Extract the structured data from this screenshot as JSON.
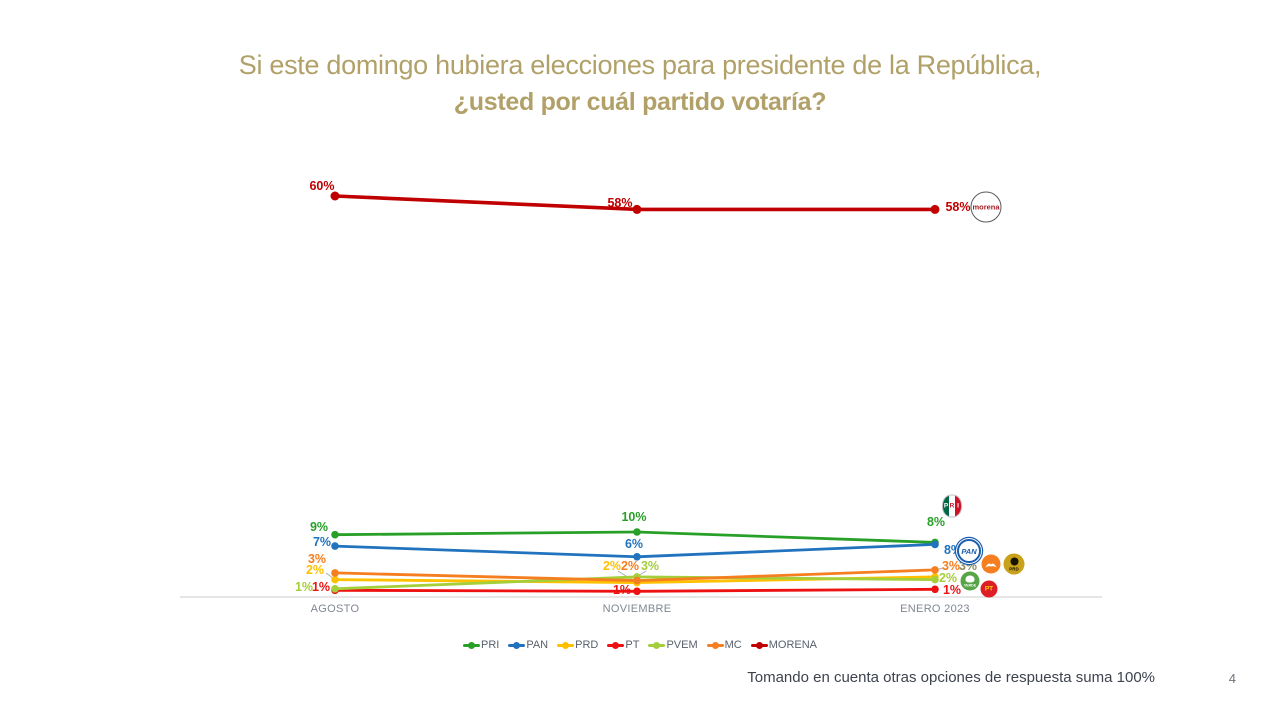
{
  "title": {
    "line1": "Si este domingo hubiera elecciones para presidente de la República,",
    "line2": "¿usted por cuál partido votaría?"
  },
  "footer": {
    "note": "Tomando en cuenta otras opciones de respuesta suma 100%",
    "page": "4"
  },
  "colors": {
    "title_gold": "#B1A169",
    "axis_label_gray": "#808792",
    "legend_text_gray": "#59606C",
    "axis_line_gray": "#D8D8D8"
  },
  "logos": {
    "pri_p": "P",
    "pri_r": "R",
    "pri_i": "I",
    "pan": "PAN",
    "prd": "PRD",
    "pvem": "VERDE",
    "pt": "PT",
    "morena": "morena"
  },
  "chart_data": {
    "type": "line",
    "title": "Si este domingo hubiera elecciones para presidente de la República, ¿usted por cuál partido votaría?",
    "categories": [
      "AGOSTO",
      "NOVIEMBRE",
      "ENERO 2023"
    ],
    "xlabel": "",
    "ylabel": "",
    "ylim": [
      0,
      65
    ],
    "grid": false,
    "legend_position": "bottom",
    "annotation": "Party logos shown next to the last data point of each series",
    "series": [
      {
        "name": "PRI",
        "color": "#28A028",
        "values": [
          9,
          10,
          8
        ],
        "labels": [
          "9%",
          "10%",
          "8%"
        ]
      },
      {
        "name": "PAN",
        "color": "#2173BE",
        "values": [
          7,
          6,
          8
        ],
        "labels": [
          "7%",
          "6%",
          "8%"
        ]
      },
      {
        "name": "PRD",
        "color": "#FFC000",
        "values": [
          2,
          2,
          3
        ],
        "labels": [
          "2%",
          "2%",
          "3%"
        ],
        "label_colors": [
          null,
          null,
          "#8C8C5E"
        ]
      },
      {
        "name": "PT",
        "color": "#EE1111",
        "values": [
          1,
          1,
          1
        ],
        "labels": [
          "1%",
          "1%",
          "1%"
        ]
      },
      {
        "name": "PVEM",
        "color": "#A5CE3B",
        "values": [
          1,
          3,
          2
        ],
        "labels": [
          "1%",
          "3%",
          "2%"
        ]
      },
      {
        "name": "MC",
        "color": "#F57E20",
        "values": [
          3,
          2,
          3
        ],
        "labels": [
          "3%",
          "2%",
          "3%"
        ]
      },
      {
        "name": "MORENA",
        "color": "#C00000",
        "values": [
          60,
          58,
          58
        ],
        "labels": [
          "60%",
          "58%",
          "58%"
        ]
      }
    ]
  }
}
